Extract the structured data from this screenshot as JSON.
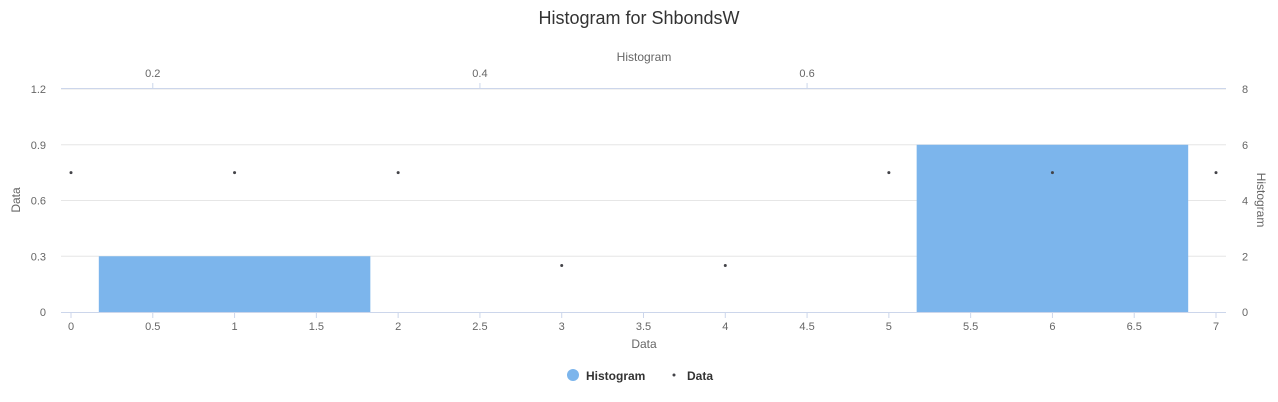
{
  "chart_data": {
    "type": "bar",
    "title": "Histogram for ShbondsW",
    "xlabel": "Data",
    "ylabel": "Data",
    "x2label": "Histogram",
    "y2label": "Histogram",
    "xlim": [
      0,
      7
    ],
    "ylim": [
      0,
      1.2
    ],
    "x2lim": [
      0.15,
      0.85
    ],
    "y2lim": [
      0,
      8
    ],
    "x_ticks": [
      "0",
      "0.5",
      "1",
      "1.5",
      "2",
      "2.5",
      "3",
      "3.5",
      "4",
      "4.5",
      "5",
      "5.5",
      "6",
      "6.5",
      "7"
    ],
    "y_ticks": [
      "0",
      "0.3",
      "0.6",
      "0.9",
      "1.2"
    ],
    "x2_ticks": [
      "0.2",
      "0.4",
      "0.6"
    ],
    "y2_ticks": [
      "0",
      "2",
      "4",
      "6",
      "8"
    ],
    "grid": true,
    "legend_position": "bottom-center",
    "series": [
      {
        "name": "Histogram",
        "type": "bar",
        "color": "#7cb5ec",
        "axis": "secondary",
        "bins": [
          {
            "x0": 0.167,
            "x1": 0.333,
            "value": 2
          },
          {
            "x0": 0.333,
            "x1": 0.5,
            "value": 0
          },
          {
            "x0": 0.5,
            "x1": 0.667,
            "value": 0
          },
          {
            "x0": 0.667,
            "x1": 0.833,
            "value": 6
          }
        ]
      },
      {
        "name": "Data",
        "type": "scatter",
        "color": "#434348",
        "axis": "primary",
        "points": [
          {
            "x": 0,
            "y": 0.75
          },
          {
            "x": 1,
            "y": 0.75
          },
          {
            "x": 2,
            "y": 0.75
          },
          {
            "x": 3,
            "y": 0.25
          },
          {
            "x": 4,
            "y": 0.25
          },
          {
            "x": 5,
            "y": 0.75
          },
          {
            "x": 6,
            "y": 0.75
          },
          {
            "x": 7,
            "y": 0.75
          }
        ]
      }
    ]
  }
}
